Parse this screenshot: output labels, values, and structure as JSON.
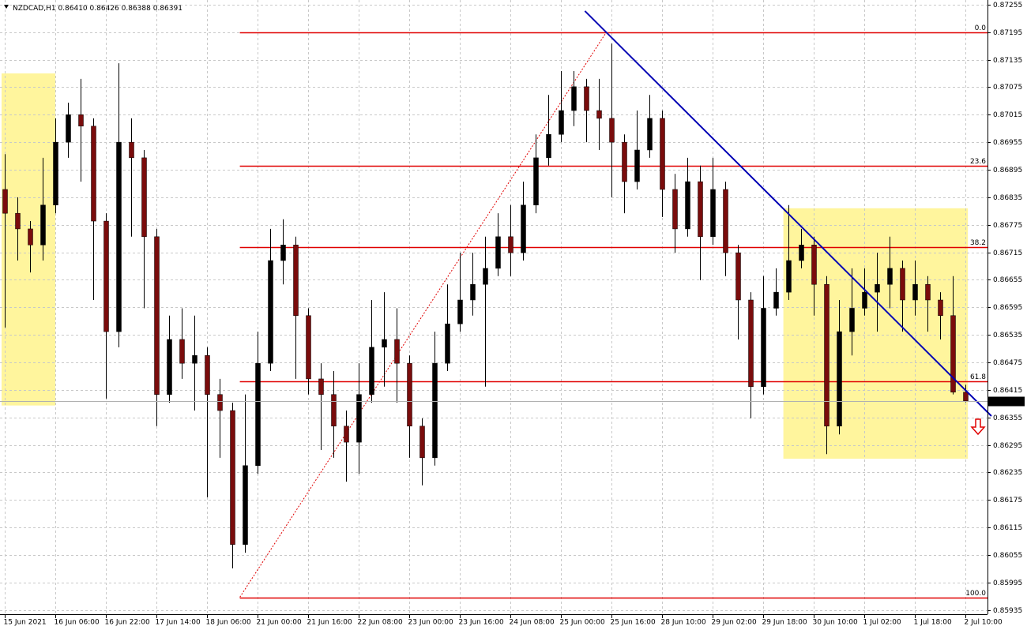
{
  "chart_data": {
    "type": "candlestick",
    "symbol": "NZDCAD,H1",
    "header": [
      "0.86410",
      "0.86426",
      "0.86388",
      "0.86391"
    ],
    "ylim": [
      0.85926,
      0.87265
    ],
    "yticks": [
      0.87255,
      0.87195,
      0.87135,
      0.87075,
      0.87015,
      0.86955,
      0.86895,
      0.86835,
      0.86775,
      0.86715,
      0.86655,
      0.86595,
      0.86535,
      0.86475,
      0.86415,
      0.86355,
      0.86295,
      0.86235,
      0.86175,
      0.86115,
      0.86055,
      0.85995,
      0.85935
    ],
    "grid": true,
    "up_color": "#000000",
    "down_color": "#7a0c0c",
    "wick_color": "#000000",
    "categories": [
      "15 Jun 2021",
      null,
      null,
      null,
      "16 Jun 06:00",
      null,
      null,
      null,
      "16 Jun 22:00",
      null,
      null,
      null,
      "17 Jun 14:00",
      null,
      null,
      null,
      "18 Jun 06:00",
      null,
      null,
      null,
      "21 Jun 00:00",
      null,
      null,
      null,
      "21 Jun 16:00",
      null,
      null,
      null,
      "22 Jun 08:00",
      null,
      null,
      null,
      "23 Jun 00:00",
      null,
      null,
      null,
      "23 Jun 16:00",
      null,
      null,
      null,
      "24 Jun 08:00",
      null,
      null,
      null,
      "25 Jun 00:00",
      null,
      null,
      null,
      "25 Jun 16:00",
      null,
      null,
      null,
      "28 Jun 10:00",
      null,
      null,
      null,
      "29 Jun 02:00",
      null,
      null,
      null,
      "29 Jun 18:00",
      null,
      null,
      null,
      "30 Jun 10:00",
      null,
      null,
      null,
      "1 Jul 02:00",
      null,
      null,
      null,
      "1 Jul 18:00",
      null,
      null,
      null,
      "2 Jul 10:00"
    ],
    "candles": [
      [
        0.86852,
        0.86929,
        0.86551,
        0.868
      ],
      [
        0.868,
        0.86835,
        0.86697,
        0.86766
      ],
      [
        0.86766,
        0.86783,
        0.86671,
        0.86731
      ],
      [
        0.86731,
        0.86921,
        0.86697,
        0.86818
      ],
      [
        0.86818,
        0.87007,
        0.868,
        0.86955
      ],
      [
        0.86955,
        0.87041,
        0.86921,
        0.87015
      ],
      [
        0.87015,
        0.87093,
        0.86869,
        0.8699
      ],
      [
        0.8699,
        0.87007,
        0.86611,
        0.86783
      ],
      [
        0.86783,
        0.868,
        0.86396,
        0.86542
      ],
      [
        0.86542,
        0.87127,
        0.86508,
        0.86955
      ],
      [
        0.86955,
        0.87007,
        0.86749,
        0.86921
      ],
      [
        0.86921,
        0.86938,
        0.86593,
        0.86749
      ],
      [
        0.86749,
        0.86766,
        0.86336,
        0.86405
      ],
      [
        0.86405,
        0.86577,
        0.86387,
        0.86525
      ],
      [
        0.86525,
        0.86593,
        0.86439,
        0.86473
      ],
      [
        0.86473,
        0.86577,
        0.8637,
        0.8649
      ],
      [
        0.8649,
        0.86508,
        0.86181,
        0.86405
      ],
      [
        0.86405,
        0.86439,
        0.86267,
        0.8637
      ],
      [
        0.8637,
        0.86387,
        0.86026,
        0.86078
      ],
      [
        0.86078,
        0.86405,
        0.8606,
        0.8625
      ],
      [
        0.8625,
        0.86542,
        0.86232,
        0.86473
      ],
      [
        0.86473,
        0.86766,
        0.86456,
        0.86697
      ],
      [
        0.86697,
        0.86787,
        0.86645,
        0.86731
      ],
      [
        0.86731,
        0.86749,
        0.86439,
        0.86577
      ],
      [
        0.86577,
        0.86593,
        0.86405,
        0.86439
      ],
      [
        0.86439,
        0.86473,
        0.86284,
        0.86405
      ],
      [
        0.86405,
        0.86456,
        0.86267,
        0.86336
      ],
      [
        0.86336,
        0.8637,
        0.86215,
        0.86301
      ],
      [
        0.86301,
        0.86473,
        0.86232,
        0.86405
      ],
      [
        0.86405,
        0.86611,
        0.86387,
        0.86508
      ],
      [
        0.86508,
        0.86628,
        0.86422,
        0.86525
      ],
      [
        0.86525,
        0.86593,
        0.86387,
        0.86473
      ],
      [
        0.86473,
        0.8649,
        0.86267,
        0.86336
      ],
      [
        0.86336,
        0.86353,
        0.86207,
        0.86267
      ],
      [
        0.86267,
        0.86542,
        0.8625,
        0.86473
      ],
      [
        0.86473,
        0.86645,
        0.86456,
        0.86559
      ],
      [
        0.86559,
        0.86714,
        0.86542,
        0.86611
      ],
      [
        0.86611,
        0.86714,
        0.86577,
        0.86645
      ],
      [
        0.86645,
        0.86749,
        0.86422,
        0.8668
      ],
      [
        0.8668,
        0.868,
        0.86663,
        0.86749
      ],
      [
        0.86749,
        0.86818,
        0.86663,
        0.86714
      ],
      [
        0.86714,
        0.86869,
        0.86697,
        0.86818
      ],
      [
        0.86818,
        0.86972,
        0.868,
        0.86921
      ],
      [
        0.86921,
        0.87058,
        0.86904,
        0.86972
      ],
      [
        0.86972,
        0.8711,
        0.86955,
        0.87024
      ],
      [
        0.87024,
        0.8711,
        0.8699,
        0.87076
      ],
      [
        0.87076,
        0.87093,
        0.86955,
        0.87024
      ],
      [
        0.87024,
        0.87093,
        0.86938,
        0.87007
      ],
      [
        0.87007,
        0.8717,
        0.86835,
        0.86955
      ],
      [
        0.86955,
        0.86972,
        0.868,
        0.86869
      ],
      [
        0.86869,
        0.87024,
        0.86852,
        0.86938
      ],
      [
        0.86938,
        0.87058,
        0.86921,
        0.87007
      ],
      [
        0.87007,
        0.87024,
        0.86792,
        0.86852
      ],
      [
        0.86852,
        0.86886,
        0.86714,
        0.86766
      ],
      [
        0.86766,
        0.86921,
        0.86749,
        0.86869
      ],
      [
        0.86869,
        0.86904,
        0.86654,
        0.86749
      ],
      [
        0.86749,
        0.86921,
        0.86731,
        0.86852
      ],
      [
        0.86852,
        0.86869,
        0.86663,
        0.86714
      ],
      [
        0.86714,
        0.86731,
        0.86525,
        0.86611
      ],
      [
        0.86611,
        0.86628,
        0.86353,
        0.86422
      ],
      [
        0.86422,
        0.86663,
        0.86405,
        0.86593
      ],
      [
        0.86593,
        0.8668,
        0.86577,
        0.86628
      ],
      [
        0.86628,
        0.86818,
        0.86611,
        0.86697
      ],
      [
        0.86697,
        0.86766,
        0.8668,
        0.86731
      ],
      [
        0.86731,
        0.86749,
        0.86577,
        0.86645
      ],
      [
        0.86645,
        0.86663,
        0.86275,
        0.86336
      ],
      [
        0.86336,
        0.86611,
        0.86318,
        0.86542
      ],
      [
        0.86542,
        0.8668,
        0.8649,
        0.86593
      ],
      [
        0.86593,
        0.8668,
        0.86577,
        0.86628
      ],
      [
        0.86628,
        0.86714,
        0.86542,
        0.86645
      ],
      [
        0.86645,
        0.86749,
        0.86593,
        0.8668
      ],
      [
        0.8668,
        0.86697,
        0.86542,
        0.86611
      ],
      [
        0.86611,
        0.86697,
        0.86577,
        0.86645
      ],
      [
        0.86645,
        0.86663,
        0.86542,
        0.86611
      ],
      [
        0.86611,
        0.86628,
        0.86525,
        0.86577
      ],
      [
        0.86577,
        0.86663,
        0.86405,
        0.8641
      ],
      [
        0.8641,
        0.86426,
        0.86388,
        0.86391
      ]
    ],
    "fibonacci": {
      "color": "#e00000",
      "x": [
        18.6,
        47.6
      ],
      "levels": [
        {
          "label": "0.0",
          "value": 0.87195
        },
        {
          "label": "23.6",
          "value": 0.86904
        },
        {
          "label": "38.2",
          "value": 0.86727
        },
        {
          "label": "61.8",
          "value": 0.86434
        },
        {
          "label": "100.0",
          "value": 0.85963
        }
      ]
    },
    "trendline": {
      "color": "#0000b4",
      "x": [
        45.9,
        78.06
      ],
      "values": [
        0.87241,
        0.86358
      ]
    },
    "zones": [
      {
        "color": "#fff59d",
        "x": [
          -0.25,
          4.0
        ],
        "values": [
          0.87105,
          0.86381
        ]
      },
      {
        "color": "#fff59d",
        "x": [
          61.6,
          76.2
        ],
        "values": [
          0.86811,
          0.86265
        ]
      }
    ]
  }
}
